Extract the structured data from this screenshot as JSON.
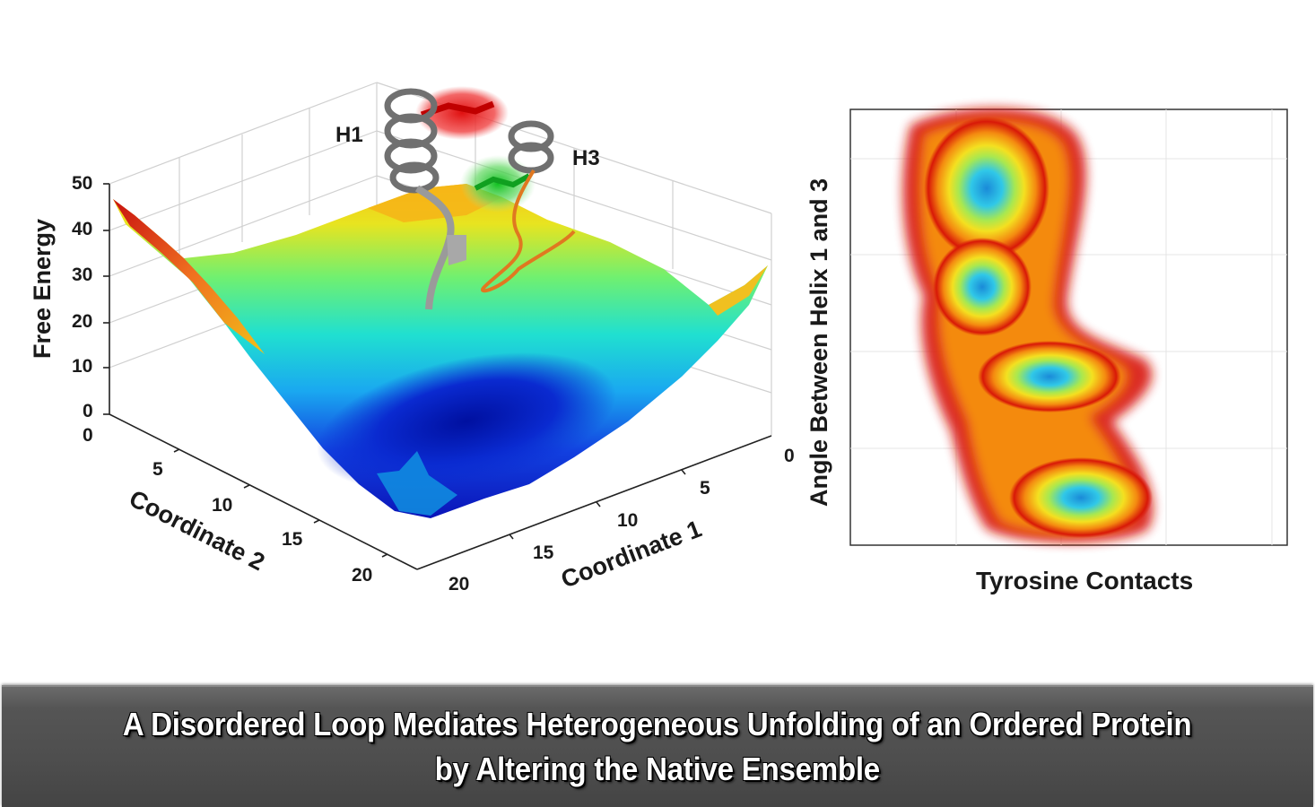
{
  "surface_plot": {
    "z_label": "Free Energy",
    "z_ticks": [
      "0",
      "10",
      "20",
      "30",
      "40",
      "50"
    ],
    "x_label": "Coordinate 1",
    "x_ticks": [
      "0",
      "5",
      "10",
      "15",
      "20"
    ],
    "y_label": "Coordinate 2",
    "y_ticks": [
      "0",
      "5",
      "10",
      "15",
      "20"
    ],
    "helix_labels": [
      "H1",
      "H3"
    ],
    "colors": {
      "low": "#0a1fd0",
      "mid": "#18e0d0",
      "high": "#f4c010",
      "peak": "#c81010"
    }
  },
  "density_plot": {
    "x_label": "Tyrosine Contacts",
    "y_label": "Angle Between Helix 1 and 3"
  },
  "title": {
    "line1": "A Disordered Loop Mediates Heterogeneous Unfolding of an Ordered Protein",
    "line2": "by Altering the Native Ensemble"
  }
}
